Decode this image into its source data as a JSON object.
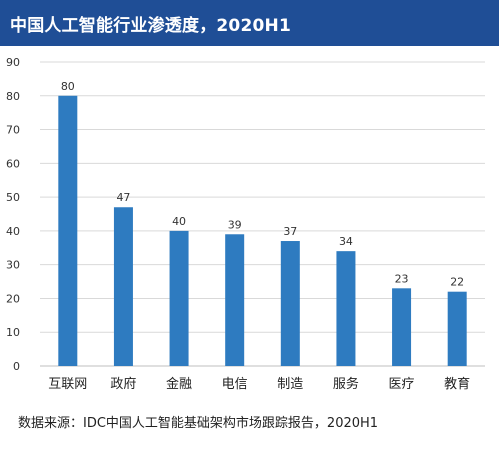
{
  "header": {
    "title": "中国人工智能行业渗透度，2020H1"
  },
  "footer": {
    "source": "数据来源：IDC中国人工智能基础架构市场跟踪报告，2020H1"
  },
  "colors": {
    "bar": "#2e7bc0",
    "title_bg": "#1f4e96",
    "grid": "#d9d9d9",
    "text": "#333333"
  },
  "chart_data": {
    "type": "bar",
    "title": "中国人工智能行业渗透度，2020H1",
    "xlabel": "",
    "ylabel": "",
    "categories": [
      "互联网",
      "政府",
      "金融",
      "电信",
      "制造",
      "服务",
      "医疗",
      "教育"
    ],
    "values": [
      80,
      47,
      40,
      39,
      37,
      34,
      23,
      22
    ],
    "data_labels": [
      "80",
      "47",
      "40",
      "39",
      "37",
      "34",
      "23",
      "22"
    ],
    "ylim": [
      0,
      90
    ],
    "yticks": [
      0,
      10,
      20,
      30,
      40,
      50,
      60,
      70,
      80,
      90
    ],
    "grid": true,
    "legend": "none"
  }
}
